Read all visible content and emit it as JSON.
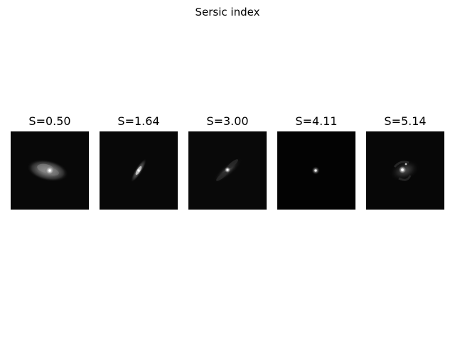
{
  "figure": {
    "title": "Sersic index"
  },
  "panels": [
    {
      "title": "S=0.50",
      "sersic_index": 0.5
    },
    {
      "title": "S=1.64",
      "sersic_index": 1.64
    },
    {
      "title": "S=3.00",
      "sersic_index": 3.0
    },
    {
      "title": "S=4.11",
      "sersic_index": 4.11
    },
    {
      "title": "S=5.14",
      "sersic_index": 5.14
    }
  ],
  "colors": {
    "background": "#ffffff",
    "image_background": "#050505",
    "text": "#000000"
  }
}
